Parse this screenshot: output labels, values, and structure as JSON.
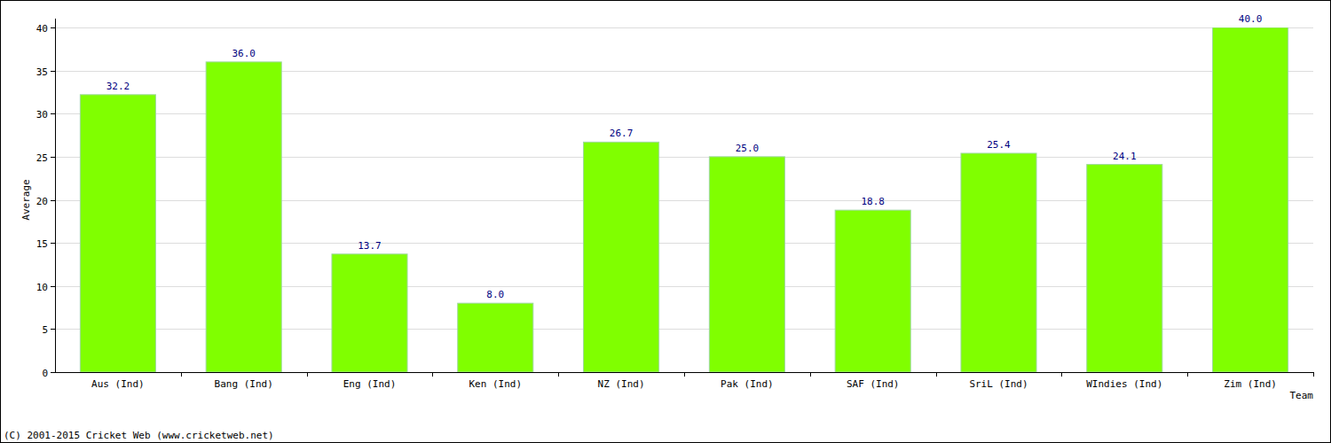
{
  "chart_data": {
    "type": "bar",
    "x_label": "Team",
    "y_label": "Average",
    "annotations": [
      "(C) 2001-2015 Cricket Web (www.cricketweb.net)"
    ],
    "categories": [
      "Aus (Ind)",
      "Bang (Ind)",
      "Eng (Ind)",
      "Ken (Ind)",
      "NZ (Ind)",
      "Pak (Ind)",
      "SAF (Ind)",
      "SriL (Ind)",
      "WIndies (Ind)",
      "Zim (Ind)"
    ],
    "values": [
      32.2,
      36.0,
      13.7,
      8.0,
      26.7,
      25.0,
      18.8,
      25.4,
      24.1,
      40.0
    ],
    "value_labels": [
      "32.2",
      "36.0",
      "13.7",
      "8.0",
      "26.7",
      "25.0",
      "18.8",
      "25.4",
      "24.1",
      "40.0"
    ],
    "color": "#80ff00",
    "ylim": [
      0,
      40
    ],
    "yticks": [
      0,
      5,
      10,
      15,
      20,
      25,
      30,
      35,
      40
    ],
    "grid": true,
    "data_labels": true
  }
}
